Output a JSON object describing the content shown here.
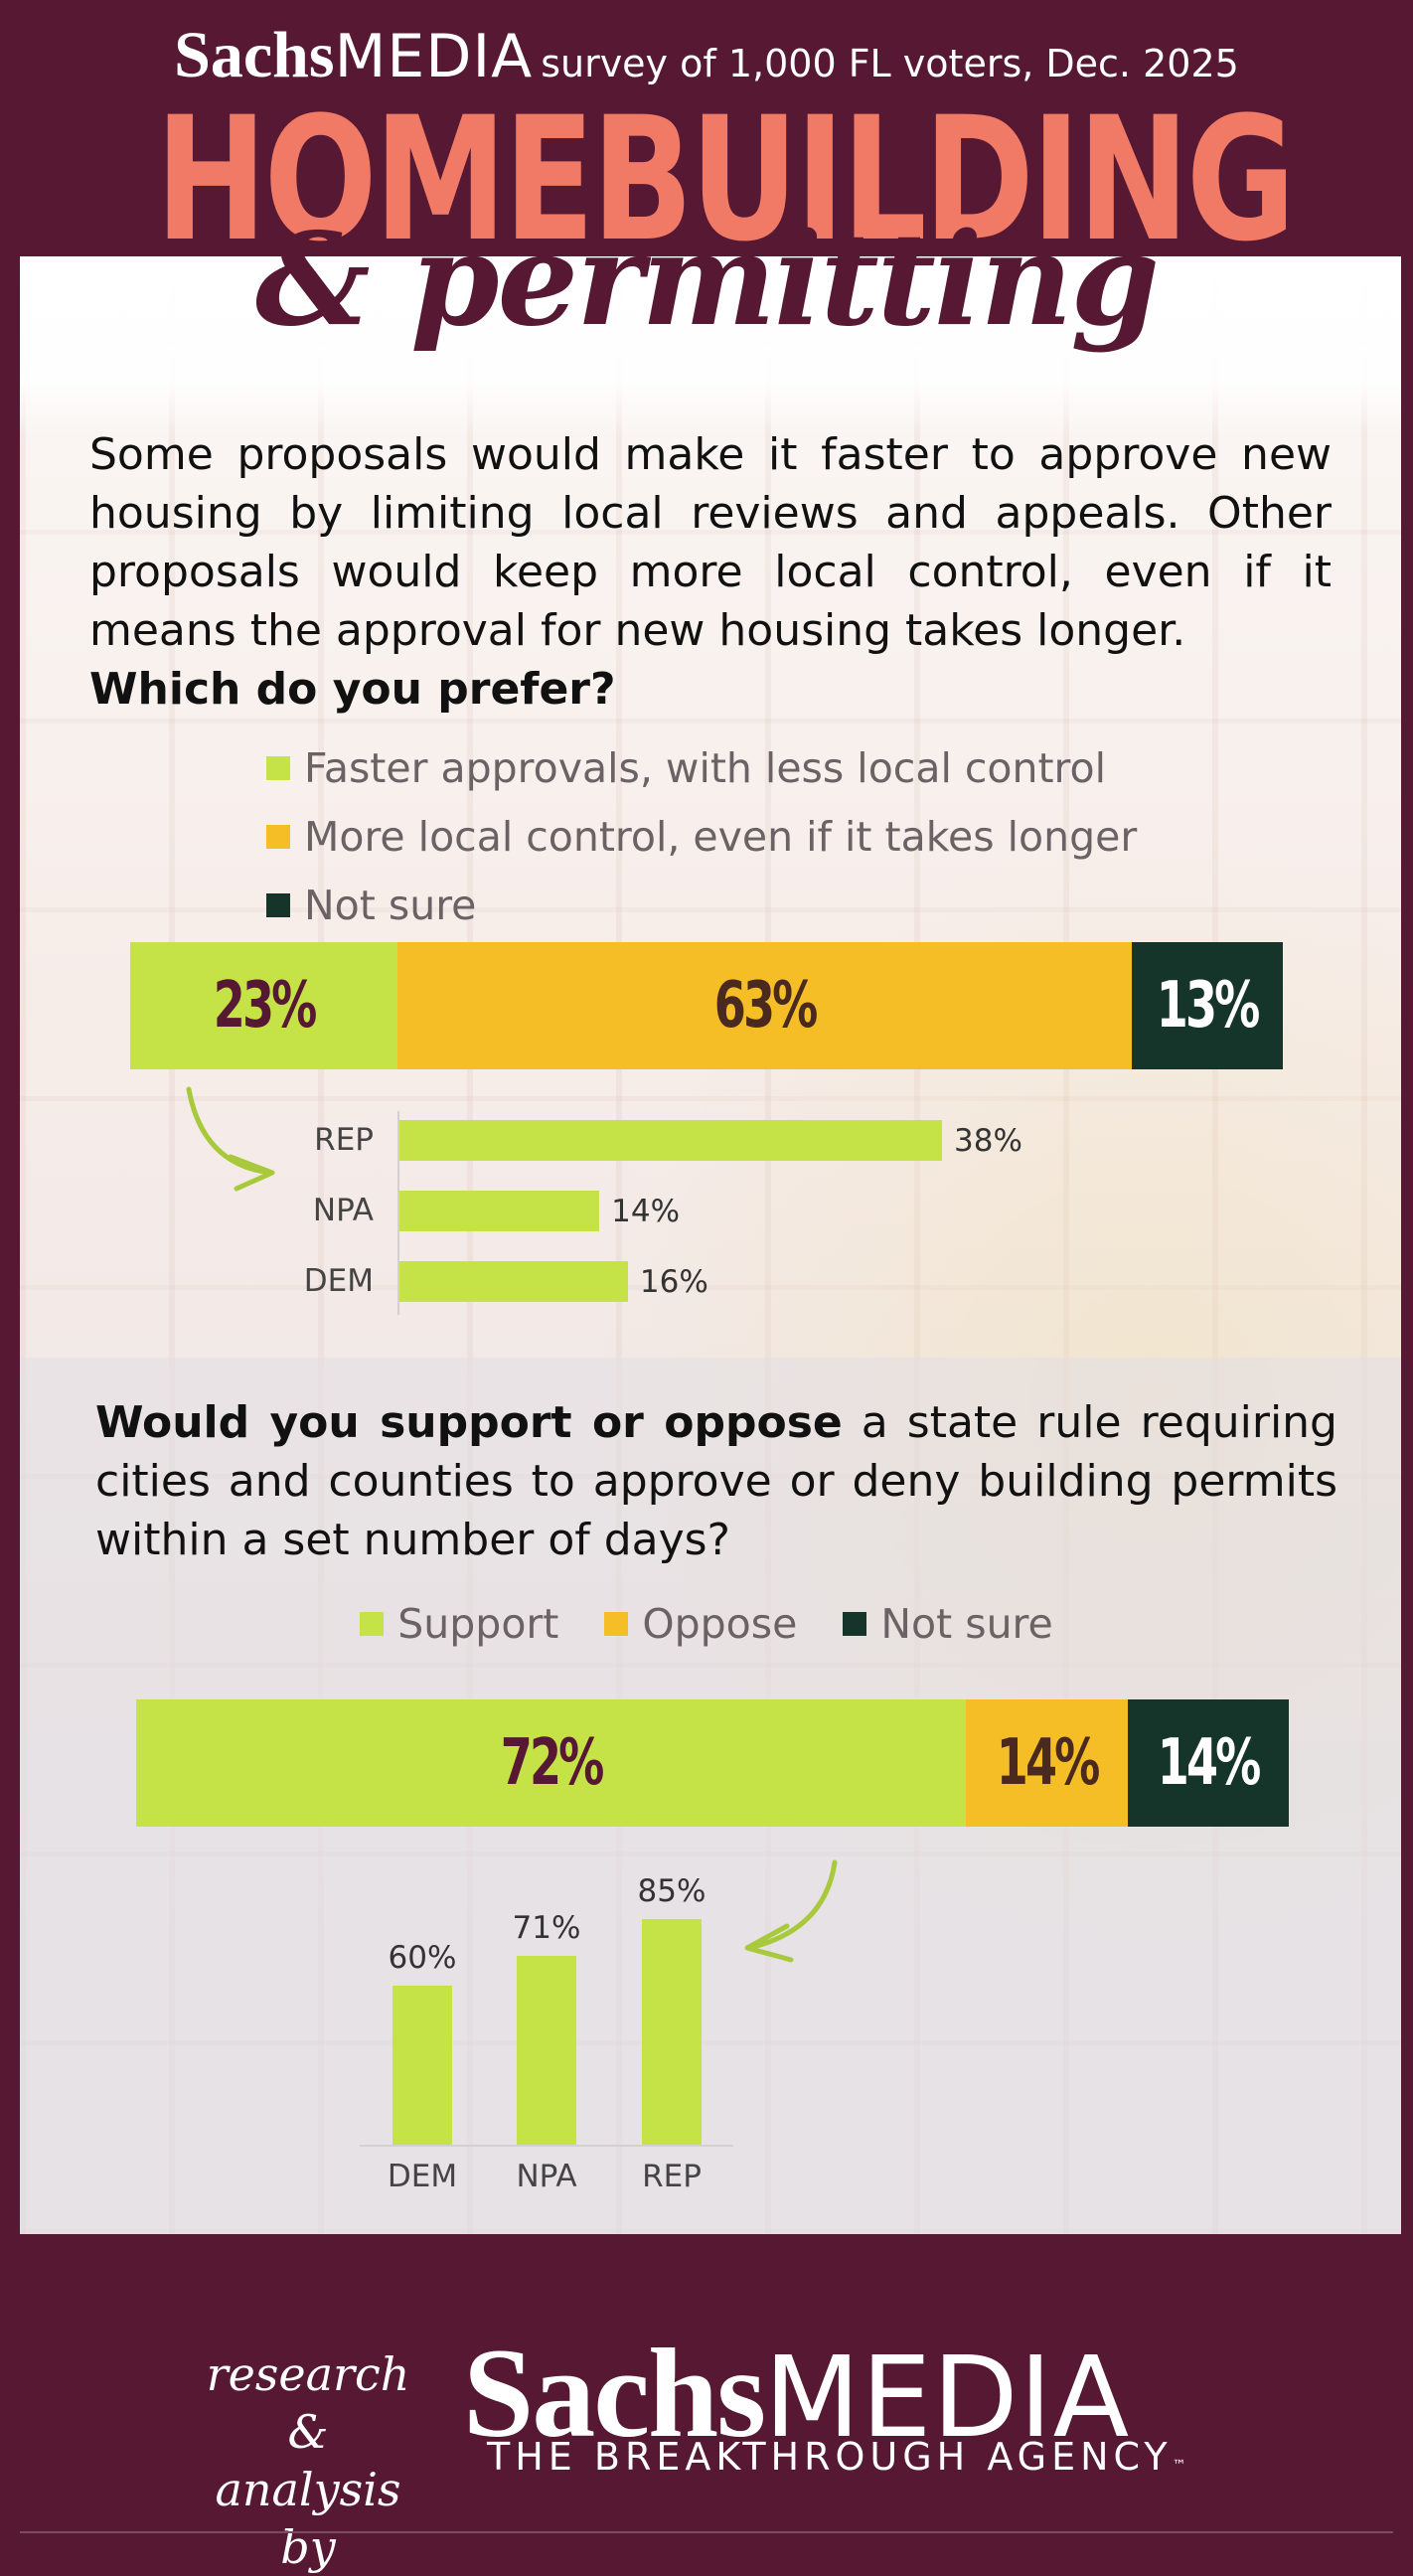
{
  "header": {
    "brand_bold": "Sachs",
    "brand_light": "MEDIA",
    "survey_note": "survey of 1,000 FL voters, Dec. 2025",
    "title": "HOMEBUILDING",
    "subtitle": "& permitting"
  },
  "question1": {
    "text": "Some proposals would make it faster to approve new housing by limiting local reviews and appeals. Other proposals would keep more local control, even if it means the approval for new housing takes longer.",
    "ask": "Which do you prefer?"
  },
  "question2": {
    "bold": "Would you support or oppose",
    "text": " a state rule requiring cities and counties to approve or deny building permits within a set number of days?"
  },
  "colors": {
    "lime": "#c5e346",
    "gold": "#f5bd26",
    "dark_green": "#16352a",
    "maroon": "#561832",
    "coral": "#f07a65"
  },
  "chart_data": [
    {
      "type": "bar",
      "orientation": "horizontal-stacked",
      "series": [
        {
          "name": "Faster approvals, with less local control",
          "value": 23,
          "label": "23%"
        },
        {
          "name": "More local control, even if it takes longer",
          "value": 63,
          "label": "63%"
        },
        {
          "name": "Not sure",
          "value": 13,
          "label": "13%"
        }
      ]
    },
    {
      "type": "bar",
      "orientation": "horizontal",
      "categories": [
        "REP",
        "NPA",
        "DEM"
      ],
      "values": [
        38,
        14,
        16
      ],
      "labels": [
        "38%",
        "14%",
        "16%"
      ]
    },
    {
      "type": "bar",
      "orientation": "horizontal-stacked",
      "series": [
        {
          "name": "Support",
          "value": 72,
          "label": "72%"
        },
        {
          "name": "Oppose",
          "value": 14,
          "label": "14%"
        },
        {
          "name": "Not sure",
          "value": 14,
          "label": "14%"
        }
      ]
    },
    {
      "type": "bar",
      "orientation": "vertical",
      "categories": [
        "DEM",
        "NPA",
        "REP"
      ],
      "values": [
        60,
        71,
        85
      ],
      "labels": [
        "60%",
        "71%",
        "85%"
      ]
    }
  ],
  "footer": {
    "lead": "research & analysis by",
    "brand_bold": "Sachs",
    "brand_light": "MEDIA",
    "tagline": "THE BREAKTHROUGH AGENCY",
    "tm": "™"
  }
}
